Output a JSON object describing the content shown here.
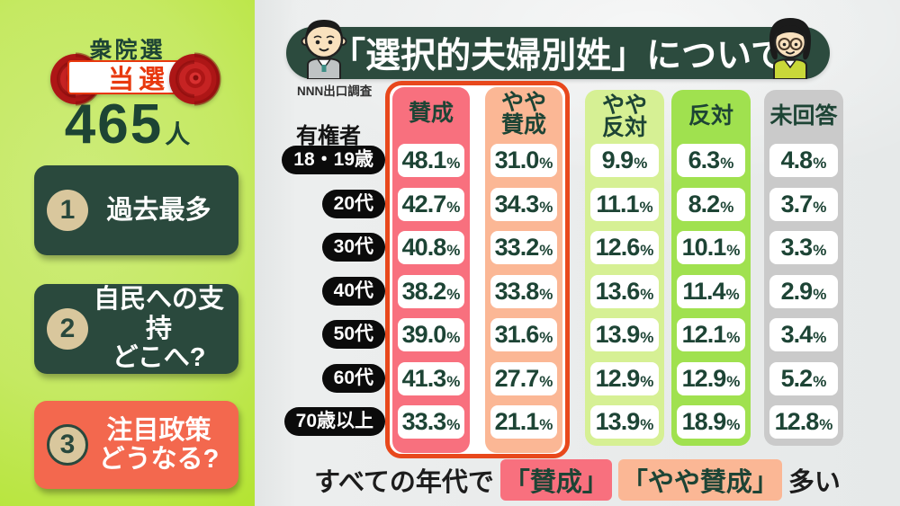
{
  "sidebar": {
    "election_label": "衆院選",
    "elected_label": "当選",
    "count_number": "465",
    "count_unit": "人",
    "topics": [
      {
        "number": "1",
        "lines": [
          "過去最多"
        ]
      },
      {
        "number": "2",
        "lines": [
          "自民への支持",
          "どこへ?"
        ]
      },
      {
        "number": "3",
        "lines": [
          "注目政策",
          "どうなる?"
        ]
      }
    ]
  },
  "header": {
    "title": "「選択的夫婦別姓」について",
    "source": "NNN出口調査"
  },
  "chart_data": {
    "type": "table",
    "title": "「選択的夫婦別姓」について",
    "source": "NNN出口調査",
    "row_axis_label": "有権者",
    "unit": "%",
    "columns": [
      {
        "label": "賛成",
        "lines": [
          "賛成"
        ],
        "color": "#F8707E",
        "highlighted": true
      },
      {
        "label": "やや賛成",
        "lines": [
          "やや",
          "賛成"
        ],
        "color": "#FBB795",
        "highlighted": true
      },
      {
        "label": "やや反対",
        "lines": [
          "やや",
          "反対"
        ],
        "color": "#D6F094",
        "highlighted": false
      },
      {
        "label": "反対",
        "lines": [
          "反対"
        ],
        "color": "#A0E14F",
        "highlighted": false
      },
      {
        "label": "未回答",
        "lines": [
          "未回答"
        ],
        "color": "#CACACA",
        "highlighted": false
      }
    ],
    "rows": [
      {
        "label": "18・19歳",
        "values": [
          "48.1",
          "31.0",
          "9.9",
          "6.3",
          "4.8"
        ]
      },
      {
        "label": "20代",
        "values": [
          "42.7",
          "34.3",
          "11.1",
          "8.2",
          "3.7"
        ]
      },
      {
        "label": "30代",
        "values": [
          "40.8",
          "33.2",
          "12.6",
          "10.1",
          "3.3"
        ]
      },
      {
        "label": "40代",
        "values": [
          "38.2",
          "33.8",
          "13.6",
          "11.4",
          "2.9"
        ]
      },
      {
        "label": "50代",
        "values": [
          "39.0",
          "31.6",
          "13.9",
          "12.1",
          "3.4"
        ]
      },
      {
        "label": "60代",
        "values": [
          "41.3",
          "27.7",
          "12.9",
          "12.9",
          "5.2"
        ]
      },
      {
        "label": "70歳以上",
        "values": [
          "33.3",
          "21.1",
          "13.9",
          "18.9",
          "12.8"
        ]
      }
    ]
  },
  "footer": {
    "prefix": "すべての年代で",
    "tag_agree": "「賛成」",
    "tag_somewhat_agree": "「やや賛成」",
    "suffix": "多い"
  },
  "colors": {
    "agree": "#F8707E",
    "somewhat_agree": "#FBB795",
    "somewhat_oppose": "#D6F094",
    "oppose": "#A0E14F",
    "no_answer": "#CACACA",
    "group_outline": "#E8481C",
    "dark_green_text": "#1D4435",
    "sidebar_card": "#2A493D",
    "topic3_card": "#F3684E",
    "number_circle": "#D9C79D",
    "elected_red": "#E8380D"
  }
}
